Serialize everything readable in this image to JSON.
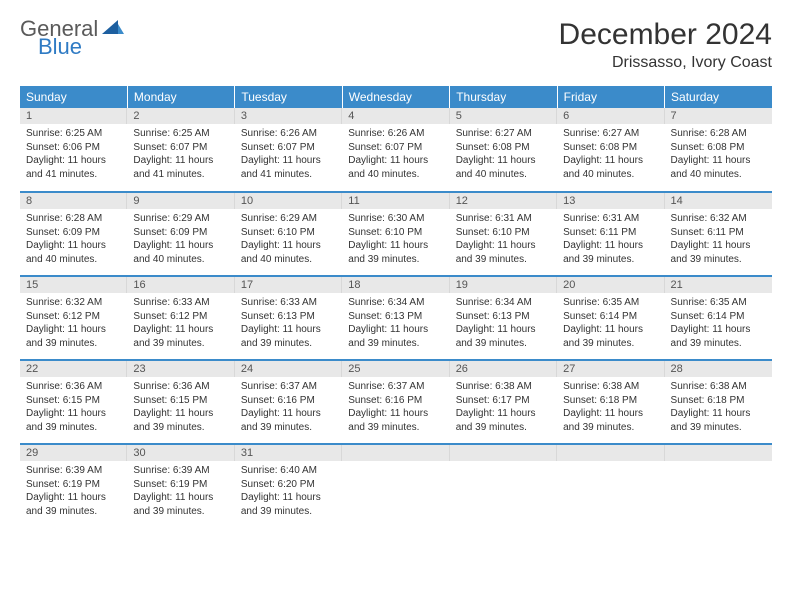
{
  "logo": {
    "word1": "General",
    "word2": "Blue",
    "accent_color": "#2f7bc4",
    "text_color": "#5a5a5a"
  },
  "title": "December 2024",
  "location": "Drissasso, Ivory Coast",
  "header_bg": "#3b8bca",
  "weekdays": [
    "Sunday",
    "Monday",
    "Tuesday",
    "Wednesday",
    "Thursday",
    "Friday",
    "Saturday"
  ],
  "days": [
    {
      "n": 1,
      "sunrise": "6:25 AM",
      "sunset": "6:06 PM",
      "daylight": "11 hours and 41 minutes."
    },
    {
      "n": 2,
      "sunrise": "6:25 AM",
      "sunset": "6:07 PM",
      "daylight": "11 hours and 41 minutes."
    },
    {
      "n": 3,
      "sunrise": "6:26 AM",
      "sunset": "6:07 PM",
      "daylight": "11 hours and 41 minutes."
    },
    {
      "n": 4,
      "sunrise": "6:26 AM",
      "sunset": "6:07 PM",
      "daylight": "11 hours and 40 minutes."
    },
    {
      "n": 5,
      "sunrise": "6:27 AM",
      "sunset": "6:08 PM",
      "daylight": "11 hours and 40 minutes."
    },
    {
      "n": 6,
      "sunrise": "6:27 AM",
      "sunset": "6:08 PM",
      "daylight": "11 hours and 40 minutes."
    },
    {
      "n": 7,
      "sunrise": "6:28 AM",
      "sunset": "6:08 PM",
      "daylight": "11 hours and 40 minutes."
    },
    {
      "n": 8,
      "sunrise": "6:28 AM",
      "sunset": "6:09 PM",
      "daylight": "11 hours and 40 minutes."
    },
    {
      "n": 9,
      "sunrise": "6:29 AM",
      "sunset": "6:09 PM",
      "daylight": "11 hours and 40 minutes."
    },
    {
      "n": 10,
      "sunrise": "6:29 AM",
      "sunset": "6:10 PM",
      "daylight": "11 hours and 40 minutes."
    },
    {
      "n": 11,
      "sunrise": "6:30 AM",
      "sunset": "6:10 PM",
      "daylight": "11 hours and 39 minutes."
    },
    {
      "n": 12,
      "sunrise": "6:31 AM",
      "sunset": "6:10 PM",
      "daylight": "11 hours and 39 minutes."
    },
    {
      "n": 13,
      "sunrise": "6:31 AM",
      "sunset": "6:11 PM",
      "daylight": "11 hours and 39 minutes."
    },
    {
      "n": 14,
      "sunrise": "6:32 AM",
      "sunset": "6:11 PM",
      "daylight": "11 hours and 39 minutes."
    },
    {
      "n": 15,
      "sunrise": "6:32 AM",
      "sunset": "6:12 PM",
      "daylight": "11 hours and 39 minutes."
    },
    {
      "n": 16,
      "sunrise": "6:33 AM",
      "sunset": "6:12 PM",
      "daylight": "11 hours and 39 minutes."
    },
    {
      "n": 17,
      "sunrise": "6:33 AM",
      "sunset": "6:13 PM",
      "daylight": "11 hours and 39 minutes."
    },
    {
      "n": 18,
      "sunrise": "6:34 AM",
      "sunset": "6:13 PM",
      "daylight": "11 hours and 39 minutes."
    },
    {
      "n": 19,
      "sunrise": "6:34 AM",
      "sunset": "6:13 PM",
      "daylight": "11 hours and 39 minutes."
    },
    {
      "n": 20,
      "sunrise": "6:35 AM",
      "sunset": "6:14 PM",
      "daylight": "11 hours and 39 minutes."
    },
    {
      "n": 21,
      "sunrise": "6:35 AM",
      "sunset": "6:14 PM",
      "daylight": "11 hours and 39 minutes."
    },
    {
      "n": 22,
      "sunrise": "6:36 AM",
      "sunset": "6:15 PM",
      "daylight": "11 hours and 39 minutes."
    },
    {
      "n": 23,
      "sunrise": "6:36 AM",
      "sunset": "6:15 PM",
      "daylight": "11 hours and 39 minutes."
    },
    {
      "n": 24,
      "sunrise": "6:37 AM",
      "sunset": "6:16 PM",
      "daylight": "11 hours and 39 minutes."
    },
    {
      "n": 25,
      "sunrise": "6:37 AM",
      "sunset": "6:16 PM",
      "daylight": "11 hours and 39 minutes."
    },
    {
      "n": 26,
      "sunrise": "6:38 AM",
      "sunset": "6:17 PM",
      "daylight": "11 hours and 39 minutes."
    },
    {
      "n": 27,
      "sunrise": "6:38 AM",
      "sunset": "6:18 PM",
      "daylight": "11 hours and 39 minutes."
    },
    {
      "n": 28,
      "sunrise": "6:38 AM",
      "sunset": "6:18 PM",
      "daylight": "11 hours and 39 minutes."
    },
    {
      "n": 29,
      "sunrise": "6:39 AM",
      "sunset": "6:19 PM",
      "daylight": "11 hours and 39 minutes."
    },
    {
      "n": 30,
      "sunrise": "6:39 AM",
      "sunset": "6:19 PM",
      "daylight": "11 hours and 39 minutes."
    },
    {
      "n": 31,
      "sunrise": "6:40 AM",
      "sunset": "6:20 PM",
      "daylight": "11 hours and 39 minutes."
    }
  ],
  "labels": {
    "sunrise": "Sunrise:",
    "sunset": "Sunset:",
    "daylight": "Daylight:"
  },
  "layout": {
    "start_offset": 0,
    "columns": 7,
    "daynum_bg": "#e8e8e8",
    "row_border": "#3b8bca",
    "text_fontsize": 10
  }
}
